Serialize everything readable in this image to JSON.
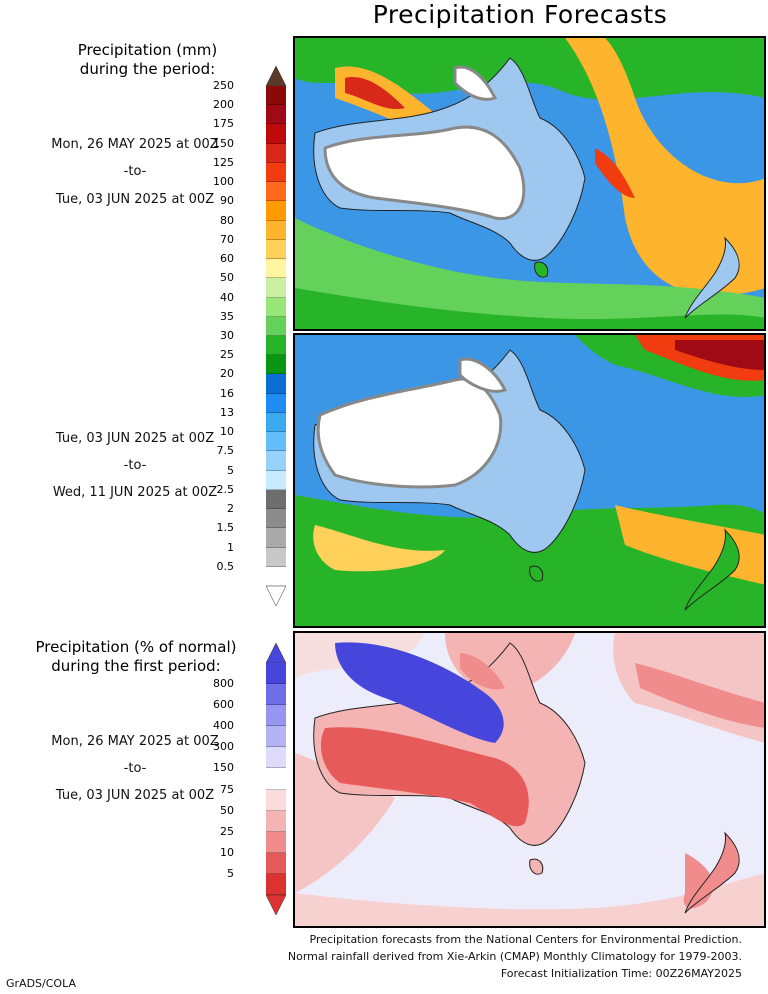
{
  "title": "Precipitation Forecasts",
  "amount_legend": {
    "heading_line1": "Precipitation (mm)",
    "heading_line2": "during the period:",
    "levels": [
      "250",
      "200",
      "175",
      "150",
      "125",
      "100",
      "90",
      "80",
      "70",
      "60",
      "50",
      "40",
      "35",
      "30",
      "25",
      "20",
      "16",
      "13",
      "10",
      "7.5",
      "5",
      "2.5",
      "2",
      "1.5",
      "1",
      "0.5"
    ],
    "colors": [
      "#8a0a0a",
      "#a00a14",
      "#be0a0a",
      "#d8281a",
      "#f03c0f",
      "#ff6a1e",
      "#ff9b00",
      "#ffb42d",
      "#ffd05a",
      "#fff5a0",
      "#c8f0a0",
      "#96e678",
      "#64d25a",
      "#28b428",
      "#0a9614",
      "#0a6ed2",
      "#1e8cf0",
      "#3caaf0",
      "#64befa",
      "#96d2fa",
      "#c8ebff",
      "#6e6e6e",
      "#8c8c8c",
      "#aaaaaa",
      "#c8c8c8",
      "#ffffff"
    ],
    "top_arrow_color": "#5a3a2a"
  },
  "period1": {
    "start": "Mon, 26 MAY 2025 at 00Z",
    "sep": "-to-",
    "end": "Tue, 03 JUN 2025 at 00Z"
  },
  "period2": {
    "start": "Tue, 03 JUN 2025 at 00Z",
    "sep": "-to-",
    "end": "Wed, 11 JUN 2025 at 00Z"
  },
  "anomaly_legend": {
    "heading_line1": "Precipitation (% of normal)",
    "heading_line2": "during the first period:",
    "levels": [
      "800",
      "600",
      "400",
      "300",
      "150",
      "75",
      "50",
      "25",
      "10",
      "5"
    ],
    "colors": [
      "#4646dc",
      "#6e6ee6",
      "#9696f0",
      "#b4b4f5",
      "#dcdcfa",
      "#ffffff",
      "#fadcdc",
      "#f5b4b4",
      "#f08c8c",
      "#e65a5a",
      "#dc3232"
    ],
    "top_arrow_color": "#4646dc",
    "bottom_arrow_color": "#dc3232"
  },
  "period3": {
    "start": "Mon, 26 MAY 2025 at 00Z",
    "sep": "-to-",
    "end": "Tue, 03 JUN 2025 at 00Z"
  },
  "footer": {
    "line1": "Precipitation forecasts from the National Centers for Environmental Prediction.",
    "line2": "Normal rainfall derived from Xie-Arkin (CMAP) Monthly Climatology for 1979-2003.",
    "line3": "Forecast Initialization Time: 00Z26MAY2025"
  },
  "credit": "GrADS/COLA"
}
